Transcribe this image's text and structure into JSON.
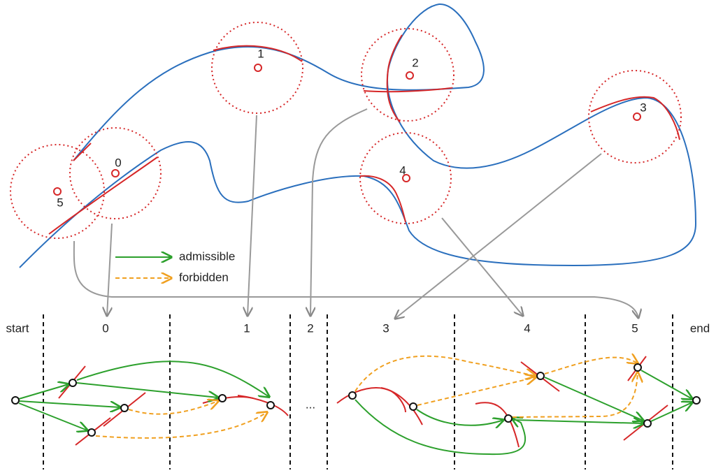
{
  "circles": [
    {
      "label": "0"
    },
    {
      "label": "1"
    },
    {
      "label": "2"
    },
    {
      "label": "3"
    },
    {
      "label": "4"
    },
    {
      "label": "5"
    }
  ],
  "legend": [
    {
      "label": "admissible"
    },
    {
      "label": "forbidden"
    }
  ],
  "columns": [
    "start",
    "0",
    "1",
    "2",
    "3",
    "4",
    "5",
    "end"
  ],
  "ellipsis": "..."
}
